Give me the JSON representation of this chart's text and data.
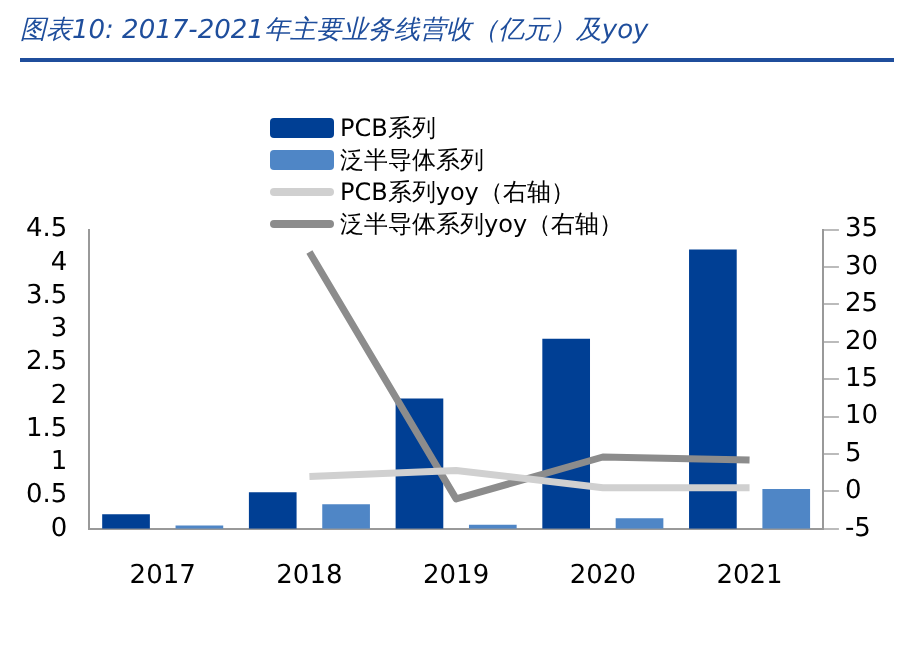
{
  "chart_data": {
    "type": "bar",
    "title": "图表10: 2017-2021年主要业务线营收（亿元）及yoy",
    "categories": [
      "2017",
      "2018",
      "2019",
      "2020",
      "2021"
    ],
    "series": [
      {
        "name": "PCB系列",
        "color": "#003f94",
        "values": [
          0.22,
          0.55,
          1.96,
          2.86,
          4.2
        ]
      },
      {
        "name": "泛半导体系列",
        "color": "#4f86c6",
        "values": [
          0.05,
          0.37,
          0.06,
          0.16,
          0.6
        ]
      },
      {
        "name": "PCB系列yoy（右轴）",
        "type": "line",
        "axis": "y2",
        "color": "#d0d0d0",
        "values": [
          null,
          2.0,
          2.8,
          0.5,
          0.5
        ]
      },
      {
        "name": "泛半导体系列yoy（右轴）",
        "type": "line",
        "axis": "y2",
        "color": "#8c8c8c",
        "values": [
          null,
          32,
          -1,
          4.6,
          4.2
        ]
      }
    ],
    "ylim": [
      0,
      4.5
    ],
    "yticks": [
      0,
      0.5,
      1,
      1.5,
      2,
      2.5,
      3,
      3.5,
      4,
      4.5
    ],
    "y2lim": [
      -5,
      35
    ],
    "y2ticks": [
      -5,
      0,
      5,
      10,
      15,
      20,
      25,
      30,
      35
    ],
    "legend": "top",
    "marker": "none",
    "line_style": "solid",
    "grid": false
  }
}
